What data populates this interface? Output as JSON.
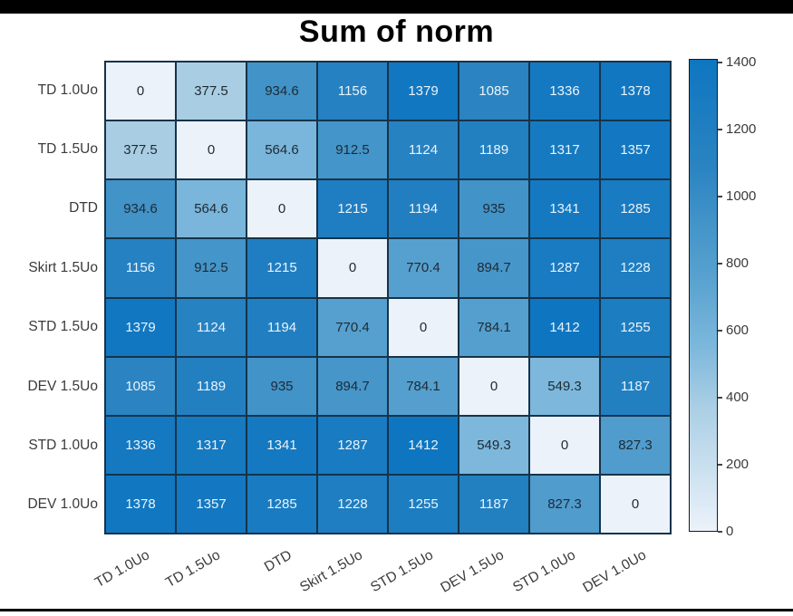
{
  "title": "Sum of norm",
  "chart_data": {
    "type": "heatmap",
    "title": "Sum of norm",
    "row_labels": [
      "TD 1.0Uo",
      "TD 1.5Uo",
      "DTD",
      "Skirt 1.5Uo",
      "STD 1.5Uo",
      "DEV 1.5Uo",
      "STD 1.0Uo",
      "DEV 1.0Uo"
    ],
    "col_labels": [
      "TD 1.0Uo",
      "TD 1.5Uo",
      "DTD",
      "Skirt 1.5Uo",
      "STD 1.5Uo",
      "DEV 1.5Uo",
      "STD 1.0Uo",
      "DEV 1.0Uo"
    ],
    "values": [
      [
        0,
        377.5,
        934.6,
        1156,
        1379,
        1085,
        1336,
        1378
      ],
      [
        377.5,
        0,
        564.6,
        912.5,
        1124,
        1189,
        1317,
        1357
      ],
      [
        934.6,
        564.6,
        0,
        1215,
        1194,
        935,
        1341,
        1285
      ],
      [
        1156,
        912.5,
        1215,
        0,
        770.4,
        894.7,
        1287,
        1228
      ],
      [
        1379,
        1124,
        1194,
        770.4,
        0,
        784.1,
        1412,
        1255
      ],
      [
        1085,
        1189,
        935,
        894.7,
        784.1,
        0,
        549.3,
        1187
      ],
      [
        1336,
        1317,
        1341,
        1287,
        1412,
        549.3,
        0,
        827.3
      ],
      [
        1378,
        1357,
        1285,
        1228,
        1255,
        1187,
        827.3,
        0
      ]
    ],
    "value_range": [
      0,
      1412
    ],
    "colorbar_ticks": [
      0,
      200,
      400,
      600,
      800,
      1000,
      1200,
      1400
    ],
    "legend_position": "right",
    "x_tick_rotation_deg": -30,
    "colors": {
      "colormap_stops": [
        [
          0.0,
          "#ebf2fa"
        ],
        [
          0.267,
          "#a9cee4"
        ],
        [
          0.389,
          "#7db8dc"
        ],
        [
          0.546,
          "#56a0cf"
        ],
        [
          0.662,
          "#4193c8"
        ],
        [
          0.768,
          "#2b84c1"
        ],
        [
          1.0,
          "#0e76c1"
        ]
      ],
      "grid_line": "#16334a",
      "cell_text_dark": "#1f2a33",
      "cell_text_light": "#eaf3fb",
      "axis_label": "#3a3a3a",
      "title": "#000000"
    },
    "white_text_threshold": 1000
  }
}
